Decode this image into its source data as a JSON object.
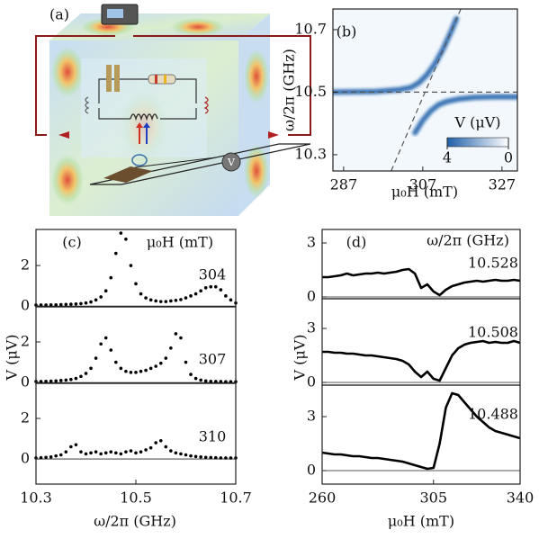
{
  "illustration": {
    "label": "(a)",
    "meter": "V"
  },
  "chart_data": [
    {
      "type": "heatmap",
      "title": "(b)",
      "xlabel": "μ₀H (mT)",
      "ylabel": "ω/2π (GHz)",
      "xlim": [
        284.3,
        330.9
      ],
      "ylim": [
        10.248,
        10.766
      ],
      "xticks": [
        287,
        307,
        327
      ],
      "yticks": [
        10.7,
        10.5,
        10.3
      ],
      "color": "#1f5fa8",
      "branches": [
        {
          "x": [
            284.3,
            295,
            301,
            304,
            306,
            308,
            310,
            312,
            314,
            315.5
          ],
          "y": [
            10.5,
            10.502,
            10.508,
            10.515,
            10.53,
            10.555,
            10.59,
            10.635,
            10.69,
            10.735
          ]
        },
        {
          "x": [
            305,
            307,
            309,
            311,
            313,
            316,
            320,
            325,
            330.9
          ],
          "y": [
            10.37,
            10.41,
            10.44,
            10.46,
            10.47,
            10.478,
            10.483,
            10.485,
            10.485
          ]
        }
      ],
      "guides": [
        {
          "x": [
            299,
            316.6
          ],
          "y": [
            10.248,
            10.766
          ]
        },
        {
          "x": [
            284.3,
            330.9
          ],
          "y": [
            10.5,
            10.5
          ]
        }
      ],
      "colorbar": {
        "label": "V (μV)",
        "clim": [
          0,
          4
        ],
        "ticks": [
          4,
          0
        ]
      }
    },
    {
      "type": "scatter",
      "title": "(c)",
      "legend_title": "μ₀H (mT)",
      "xlim": [
        10.3,
        10.7
      ],
      "ylim": [
        -0.04,
        3.78
      ],
      "yticks": [
        0,
        2
      ],
      "x": [
        10.3,
        10.31,
        10.32,
        10.33,
        10.34,
        10.35,
        10.36,
        10.37,
        10.38,
        10.39,
        10.4,
        10.41,
        10.42,
        10.43,
        10.44,
        10.45,
        10.46,
        10.47,
        10.48,
        10.49,
        10.5,
        10.51,
        10.52,
        10.53,
        10.54,
        10.55,
        10.56,
        10.57,
        10.58,
        10.59,
        10.6,
        10.61,
        10.62,
        10.63,
        10.64,
        10.65,
        10.66,
        10.67,
        10.68,
        10.69,
        10.7
      ],
      "series": [
        {
          "name": "304",
          "color": "#000000",
          "values": [
            0.05,
            0.05,
            0.05,
            0.06,
            0.06,
            0.07,
            0.08,
            0.09,
            0.1,
            0.12,
            0.15,
            0.2,
            0.3,
            0.45,
            0.75,
            1.4,
            2.6,
            3.6,
            3.3,
            2.0,
            1.1,
            0.6,
            0.4,
            0.3,
            0.25,
            0.22,
            0.22,
            0.25,
            0.28,
            0.32,
            0.4,
            0.5,
            0.6,
            0.75,
            0.9,
            0.95,
            0.95,
            0.8,
            0.5,
            0.3,
            0.15
          ]
        }
      ]
    },
    {
      "type": "scatter",
      "ylabel": "V (μV)",
      "xlim": [
        10.3,
        10.7
      ],
      "ylim": [
        -0.04,
        3.73
      ],
      "yticks": [
        0,
        2
      ],
      "x": [
        10.3,
        10.31,
        10.32,
        10.33,
        10.34,
        10.35,
        10.36,
        10.37,
        10.38,
        10.39,
        10.4,
        10.41,
        10.42,
        10.43,
        10.44,
        10.45,
        10.46,
        10.47,
        10.48,
        10.49,
        10.5,
        10.51,
        10.52,
        10.53,
        10.54,
        10.55,
        10.56,
        10.57,
        10.58,
        10.59,
        10.6,
        10.61,
        10.62,
        10.63,
        10.64,
        10.65,
        10.66,
        10.67,
        10.68,
        10.69,
        10.7
      ],
      "series": [
        {
          "name": "307",
          "color": "#000000",
          "values": [
            0.05,
            0.05,
            0.06,
            0.07,
            0.08,
            0.1,
            0.12,
            0.15,
            0.2,
            0.3,
            0.45,
            0.7,
            1.2,
            1.9,
            2.2,
            1.6,
            1.0,
            0.7,
            0.55,
            0.5,
            0.5,
            0.55,
            0.6,
            0.7,
            0.8,
            0.95,
            1.2,
            1.7,
            2.4,
            2.2,
            1.0,
            0.4,
            0.2,
            0.12,
            0.08,
            0.06,
            0.05,
            0.05,
            0.04,
            0.04,
            0.04
          ]
        }
      ]
    },
    {
      "type": "scatter",
      "xlabel": "ω/2π (GHz)",
      "xlim": [
        10.3,
        10.7
      ],
      "ylim": [
        -1.24,
        3.73
      ],
      "yticks": [
        0,
        2
      ],
      "xticks": [
        10.3,
        10.5,
        10.7
      ],
      "x": [
        10.3,
        10.31,
        10.32,
        10.33,
        10.34,
        10.35,
        10.36,
        10.37,
        10.38,
        10.39,
        10.4,
        10.41,
        10.42,
        10.43,
        10.44,
        10.45,
        10.46,
        10.47,
        10.48,
        10.49,
        10.5,
        10.51,
        10.52,
        10.53,
        10.54,
        10.55,
        10.56,
        10.57,
        10.58,
        10.59,
        10.6,
        10.61,
        10.62,
        10.63,
        10.64,
        10.65,
        10.66,
        10.67,
        10.68,
        10.69,
        10.7
      ],
      "series": [
        {
          "name": "310",
          "color": "#000000",
          "values": [
            0.05,
            0.06,
            0.08,
            0.1,
            0.15,
            0.2,
            0.35,
            0.6,
            0.7,
            0.35,
            0.25,
            0.3,
            0.35,
            0.25,
            0.3,
            0.35,
            0.3,
            0.25,
            0.35,
            0.4,
            0.3,
            0.35,
            0.45,
            0.55,
            0.8,
            0.9,
            0.6,
            0.4,
            0.3,
            0.25,
            0.2,
            0.15,
            0.12,
            0.1,
            0.08,
            0.07,
            0.06,
            0.05,
            0.05,
            0.05,
            0.05
          ]
        }
      ]
    },
    {
      "type": "line",
      "title": "(d)",
      "legend_title": "ω/2π (GHz)",
      "xlim": [
        260,
        340
      ],
      "ylim": [
        -0.1,
        3.75
      ],
      "yticks": [
        0,
        3
      ],
      "x": [
        260,
        262.5,
        265,
        267.5,
        270,
        272.5,
        275,
        277.5,
        280,
        282.5,
        285,
        287.5,
        290,
        292.5,
        295,
        297.5,
        300,
        302.5,
        305,
        307.5,
        310,
        312.5,
        315,
        317.5,
        320,
        322.5,
        325,
        327.5,
        330,
        332.5,
        335,
        337.5,
        340
      ],
      "series": [
        {
          "name": "10.528",
          "color": "#000000",
          "values": [
            1.1,
            1.1,
            1.15,
            1.2,
            1.3,
            1.2,
            1.25,
            1.3,
            1.3,
            1.35,
            1.3,
            1.35,
            1.4,
            1.5,
            1.55,
            1.3,
            0.5,
            0.7,
            0.3,
            0.1,
            0.4,
            0.6,
            0.7,
            0.8,
            0.85,
            0.9,
            0.85,
            0.9,
            0.95,
            0.9,
            0.9,
            0.95,
            0.9
          ]
        }
      ]
    },
    {
      "type": "line",
      "ylabel": "V (μV)",
      "xlim": [
        260,
        340
      ],
      "ylim": [
        -0.15,
        4.65
      ],
      "yticks": [
        0,
        3
      ],
      "x": [
        260,
        262.5,
        265,
        267.5,
        270,
        272.5,
        275,
        277.5,
        280,
        282.5,
        285,
        287.5,
        290,
        292.5,
        295,
        297.5,
        300,
        302.5,
        305,
        307.5,
        310,
        312.5,
        315,
        317.5,
        320,
        322.5,
        325,
        327.5,
        330,
        332.5,
        335,
        337.5,
        340
      ],
      "series": [
        {
          "name": "10.508",
          "color": "#000000",
          "values": [
            1.7,
            1.7,
            1.65,
            1.65,
            1.6,
            1.6,
            1.55,
            1.5,
            1.5,
            1.45,
            1.4,
            1.35,
            1.3,
            1.2,
            1.0,
            0.6,
            0.3,
            0.6,
            0.2,
            0.1,
            0.8,
            1.5,
            1.9,
            2.1,
            2.2,
            2.25,
            2.3,
            2.2,
            2.25,
            2.2,
            2.2,
            2.3,
            2.2
          ]
        }
      ]
    },
    {
      "type": "line",
      "xlabel": "μ₀H (mT)",
      "xlim": [
        260,
        340
      ],
      "ylim": [
        -0.75,
        4.75
      ],
      "yticks": [
        0,
        3
      ],
      "xticks": [
        260,
        305,
        340
      ],
      "x": [
        260,
        262.5,
        265,
        267.5,
        270,
        272.5,
        275,
        277.5,
        280,
        282.5,
        285,
        287.5,
        290,
        292.5,
        295,
        297.5,
        300,
        302.5,
        305,
        307.5,
        310,
        312.5,
        315,
        317.5,
        320,
        322.5,
        325,
        327.5,
        330,
        332.5,
        335,
        337.5,
        340
      ],
      "series": [
        {
          "name": "10.488",
          "color": "#000000",
          "values": [
            1.0,
            0.95,
            0.9,
            0.9,
            0.85,
            0.8,
            0.8,
            0.75,
            0.7,
            0.7,
            0.65,
            0.6,
            0.55,
            0.5,
            0.4,
            0.3,
            0.2,
            0.1,
            0.15,
            1.5,
            3.5,
            4.3,
            4.2,
            3.8,
            3.4,
            3.0,
            2.7,
            2.4,
            2.2,
            2.1,
            2.0,
            1.9,
            1.8
          ]
        }
      ]
    }
  ]
}
